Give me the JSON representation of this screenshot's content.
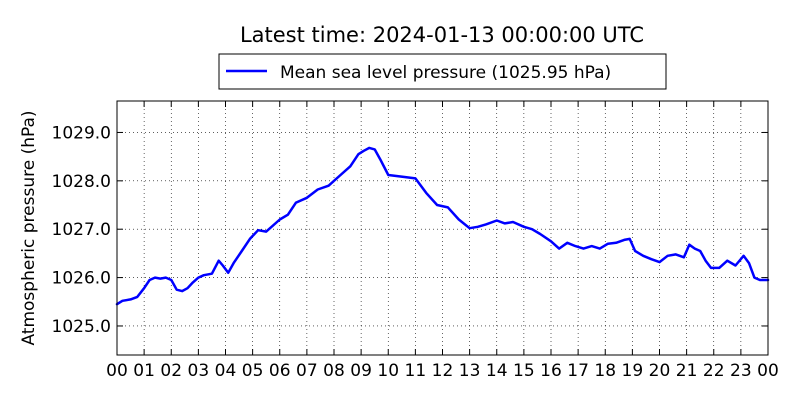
{
  "chart_data": {
    "type": "line",
    "title": "Latest time: 2024-01-13 00:00:00 UTC",
    "ylabel": "Atmospheric pressure (hPa)",
    "xlabel": "",
    "xlim": [
      0,
      24
    ],
    "ylim": [
      1024.4,
      1029.65
    ],
    "x_ticks": [
      "00",
      "01",
      "02",
      "03",
      "04",
      "05",
      "06",
      "07",
      "08",
      "09",
      "10",
      "11",
      "12",
      "13",
      "14",
      "15",
      "16",
      "17",
      "18",
      "19",
      "20",
      "21",
      "22",
      "23",
      "00"
    ],
    "y_ticks": [
      1025.0,
      1026.0,
      1027.0,
      1028.0,
      1029.0
    ],
    "y_tick_labels": [
      "1025.0",
      "1026.0",
      "1027.0",
      "1028.0",
      "1029.0"
    ],
    "grid": true,
    "legend": {
      "placement": "top-center",
      "entries": [
        "Mean sea level pressure (1025.95 hPa)"
      ]
    },
    "colors": {
      "series": "#0000ff"
    },
    "series": [
      {
        "name": "Mean sea level pressure (1025.95 hPa)",
        "x": [
          0,
          0.2,
          0.5,
          0.75,
          1.0,
          1.2,
          1.4,
          1.6,
          1.8,
          2.0,
          2.2,
          2.4,
          2.6,
          2.8,
          3.0,
          3.2,
          3.5,
          3.75,
          3.9,
          4.1,
          4.3,
          4.6,
          4.9,
          5.2,
          5.5,
          6.0,
          6.3,
          6.6,
          7.0,
          7.4,
          7.8,
          8.2,
          8.6,
          8.9,
          9.1,
          9.3,
          9.5,
          9.7,
          10.0,
          10.3,
          10.6,
          11.0,
          11.4,
          11.8,
          12.2,
          12.6,
          13.0,
          13.3,
          13.6,
          14.0,
          14.3,
          14.6,
          15.0,
          15.3,
          15.6,
          16.0,
          16.3,
          16.6,
          16.9,
          17.2,
          17.5,
          17.8,
          18.1,
          18.4,
          18.7,
          18.9,
          19.1,
          19.4,
          19.7,
          20.0,
          20.3,
          20.6,
          20.9,
          21.1,
          21.3,
          21.5,
          21.7,
          21.9,
          22.2,
          22.5,
          22.8,
          23.1,
          23.3,
          23.5,
          23.7,
          24.0
        ],
        "values": [
          1025.45,
          1025.52,
          1025.55,
          1025.6,
          1025.78,
          1025.95,
          1026.0,
          1025.98,
          1026.0,
          1025.95,
          1025.75,
          1025.72,
          1025.78,
          1025.9,
          1026.0,
          1026.05,
          1026.08,
          1026.35,
          1026.25,
          1026.1,
          1026.3,
          1026.55,
          1026.8,
          1026.98,
          1026.95,
          1027.2,
          1027.3,
          1027.55,
          1027.65,
          1027.82,
          1027.9,
          1028.1,
          1028.3,
          1028.55,
          1028.62,
          1028.68,
          1028.65,
          1028.45,
          1028.12,
          1028.1,
          1028.08,
          1028.05,
          1027.75,
          1027.5,
          1027.45,
          1027.2,
          1027.02,
          1027.05,
          1027.1,
          1027.18,
          1027.12,
          1027.15,
          1027.05,
          1027.0,
          1026.9,
          1026.75,
          1026.6,
          1026.72,
          1026.65,
          1026.6,
          1026.65,
          1026.6,
          1026.7,
          1026.72,
          1026.78,
          1026.8,
          1026.55,
          1026.45,
          1026.38,
          1026.32,
          1026.45,
          1026.48,
          1026.42,
          1026.68,
          1026.6,
          1026.55,
          1026.35,
          1026.2,
          1026.2,
          1026.35,
          1026.25,
          1026.45,
          1026.3,
          1026.0,
          1025.95,
          1025.95
        ]
      }
    ]
  }
}
